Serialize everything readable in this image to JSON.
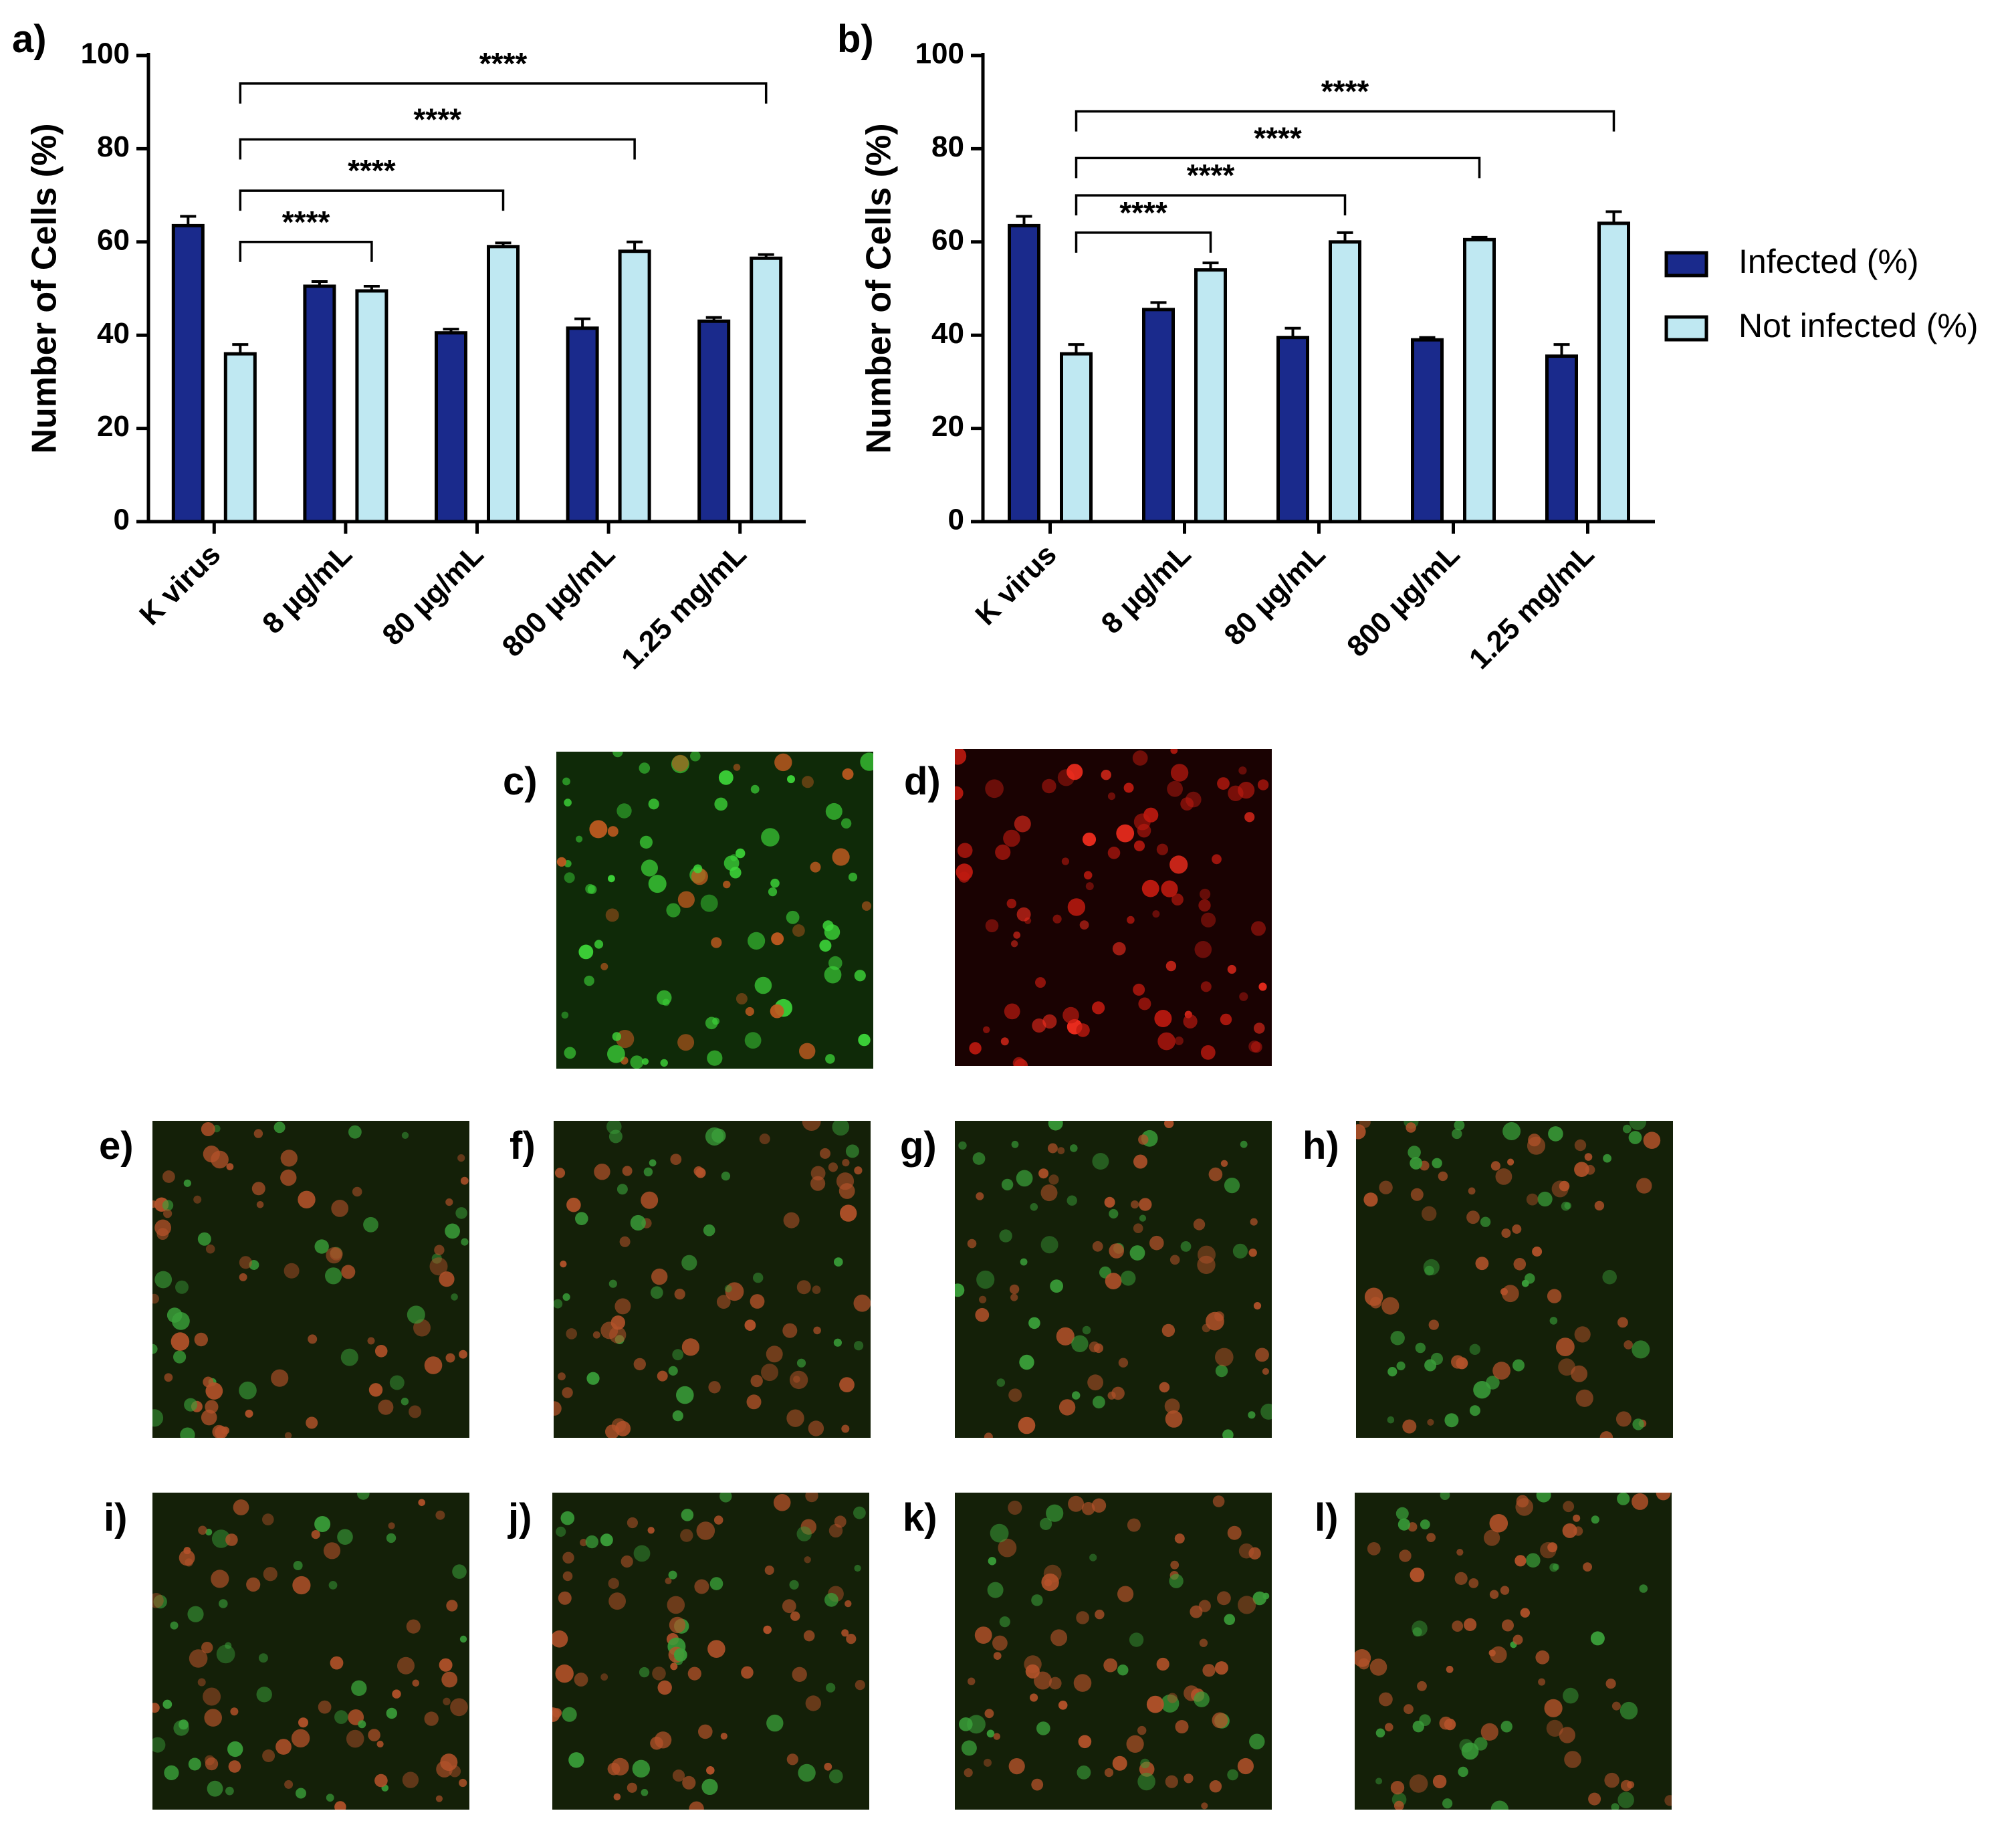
{
  "charts": [
    {
      "panel_label": "a)",
      "ylabel": "Number of Cells (%)",
      "ylim": [
        0,
        100
      ],
      "yticks": [
        "0",
        "20",
        "40",
        "60",
        "80",
        "100"
      ],
      "categories": [
        "K virus",
        "8 µg/mL",
        "80 µg/mL",
        "800 µg/mL",
        "1.25 mg/mL"
      ],
      "series": [
        {
          "name": "Infected (%)",
          "color": "#1a2a8c",
          "values": [
            63.5,
            50.5,
            40.5,
            41.5,
            43.0
          ],
          "errors": [
            2.0,
            1.0,
            0.8,
            2.0,
            0.8
          ]
        },
        {
          "name": "Not infected (%)",
          "color": "#bfe8f2",
          "values": [
            36.0,
            49.5,
            59.0,
            58.0,
            56.5
          ],
          "errors": [
            2.0,
            1.0,
            0.8,
            2.0,
            0.8
          ]
        }
      ],
      "significance": [
        {
          "from": 0,
          "to": 1,
          "level": 60,
          "label": "****"
        },
        {
          "from": 0,
          "to": 2,
          "level": 71,
          "label": "****"
        },
        {
          "from": 0,
          "to": 3,
          "level": 82,
          "label": "****"
        },
        {
          "from": 0,
          "to": 4,
          "level": 94,
          "label": "****"
        }
      ]
    },
    {
      "panel_label": "b)",
      "ylabel": "Number of Cells (%)",
      "ylim": [
        0,
        100
      ],
      "yticks": [
        "0",
        "20",
        "40",
        "60",
        "80",
        "100"
      ],
      "categories": [
        "K virus",
        "8 µg/mL",
        "80 µg/mL",
        "800 µg/mL",
        "1.25 mg/mL"
      ],
      "series": [
        {
          "name": "Infected (%)",
          "color": "#1a2a8c",
          "values": [
            63.5,
            45.5,
            39.5,
            39.0,
            35.5
          ],
          "errors": [
            2.0,
            1.5,
            2.0,
            0.5,
            2.5
          ]
        },
        {
          "name": "Not infected (%)",
          "color": "#bfe8f2",
          "values": [
            36.0,
            54.0,
            60.0,
            60.5,
            64.0
          ],
          "errors": [
            2.0,
            1.5,
            2.0,
            0.5,
            2.5
          ]
        }
      ],
      "significance": [
        {
          "from": 0,
          "to": 1,
          "level": 62,
          "label": "****"
        },
        {
          "from": 0,
          "to": 2,
          "level": 70,
          "label": "****"
        },
        {
          "from": 0,
          "to": 3,
          "level": 78,
          "label": "****"
        },
        {
          "from": 0,
          "to": 4,
          "level": 88,
          "label": "****"
        }
      ]
    }
  ],
  "chart_data": [
    {
      "type": "bar",
      "title": "",
      "xlabel": "",
      "ylabel": "Number of Cells (%)",
      "ylim": [
        0,
        100
      ],
      "categories": [
        "K virus",
        "8 µg/mL",
        "80 µg/mL",
        "800 µg/mL",
        "1.25 mg/mL"
      ],
      "series": [
        {
          "name": "Infected (%)",
          "values": [
            63.5,
            50.5,
            40.5,
            41.5,
            43.0
          ]
        },
        {
          "name": "Not infected (%)",
          "values": [
            36.0,
            49.5,
            59.0,
            58.0,
            56.5
          ]
        }
      ],
      "annotations": [
        "****",
        "****",
        "****",
        "****"
      ]
    },
    {
      "type": "bar",
      "title": "",
      "xlabel": "",
      "ylabel": "Number of Cells (%)",
      "ylim": [
        0,
        100
      ],
      "categories": [
        "K virus",
        "8 µg/mL",
        "80 µg/mL",
        "800 µg/mL",
        "1.25 mg/mL"
      ],
      "series": [
        {
          "name": "Infected (%)",
          "values": [
            63.5,
            45.5,
            39.5,
            39.0,
            35.5
          ]
        },
        {
          "name": "Not infected (%)",
          "values": [
            36.0,
            54.0,
            60.0,
            60.5,
            64.0
          ]
        }
      ],
      "annotations": [
        "****",
        "****",
        "****",
        "****"
      ],
      "legend": "right"
    }
  ],
  "legend": {
    "items": [
      {
        "name": "Infected (%)",
        "color": "#1a2a8c"
      },
      {
        "name": "Not infected (%)",
        "color": "#bfe8f2"
      }
    ]
  },
  "micrographs": [
    {
      "label": "c)",
      "tone": "green-red"
    },
    {
      "label": "d)",
      "tone": "red"
    },
    {
      "label": "e)",
      "tone": "mixed"
    },
    {
      "label": "f)",
      "tone": "mixed"
    },
    {
      "label": "g)",
      "tone": "mixed"
    },
    {
      "label": "h)",
      "tone": "mixed"
    },
    {
      "label": "i)",
      "tone": "mixed"
    },
    {
      "label": "j)",
      "tone": "mixed"
    },
    {
      "label": "k)",
      "tone": "mixed"
    },
    {
      "label": "l)",
      "tone": "mixed"
    }
  ]
}
